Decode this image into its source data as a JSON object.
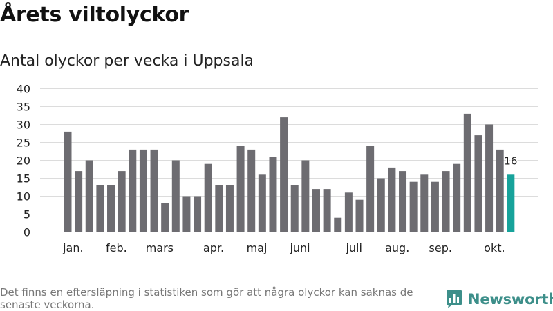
{
  "title": "Årets viltolyckor",
  "subtitle": "Antal olyckor per vecka i Uppsala",
  "footnote": "Det finns en eftersläpning i statistiken som gör att några olyckor kan saknas de senaste veckorna.",
  "brand": {
    "name": "Newsworthy",
    "icon": "bar-chart-logo-icon"
  },
  "colors": {
    "bar": "#6d6c71",
    "highlight": "#17a39b",
    "grid": "#dcdcdc",
    "text": "#222222",
    "brand": "#3d8f8a"
  },
  "chart_data": {
    "type": "bar",
    "title": "Antal olyckor per vecka i Uppsala",
    "xlabel": "",
    "ylabel": "",
    "ylim": [
      0,
      40
    ],
    "yticks": [
      0,
      5,
      10,
      15,
      20,
      25,
      30,
      35,
      40
    ],
    "grid": true,
    "weeks": [
      1,
      2,
      3,
      4,
      5,
      6,
      7,
      8,
      9,
      10,
      11,
      12,
      13,
      14,
      15,
      16,
      17,
      18,
      19,
      20,
      21,
      22,
      23,
      24,
      25,
      26,
      27,
      28,
      29,
      30,
      31,
      32,
      33,
      34,
      35,
      36,
      37,
      38,
      39,
      40,
      41,
      42
    ],
    "values": [
      28,
      17,
      20,
      13,
      13,
      17,
      23,
      23,
      23,
      8,
      20,
      10,
      10,
      19,
      13,
      13,
      24,
      23,
      16,
      21,
      32,
      13,
      20,
      12,
      12,
      4,
      11,
      9,
      24,
      15,
      18,
      17,
      14,
      16,
      14,
      17,
      19,
      33,
      27,
      30,
      23,
      16
    ],
    "highlight_index": 41,
    "highlight_label": "16",
    "month_labels": [
      {
        "label": "jan.",
        "week": 1.5
      },
      {
        "label": "feb.",
        "week": 5.5
      },
      {
        "label": "mars",
        "week": 9.5
      },
      {
        "label": "apr.",
        "week": 14.5
      },
      {
        "label": "maj",
        "week": 18.5
      },
      {
        "label": "juni",
        "week": 22.5
      },
      {
        "label": "juli",
        "week": 27.5
      },
      {
        "label": "aug.",
        "week": 31.5
      },
      {
        "label": "sep.",
        "week": 35.5
      },
      {
        "label": "okt.",
        "week": 40.5
      }
    ]
  }
}
